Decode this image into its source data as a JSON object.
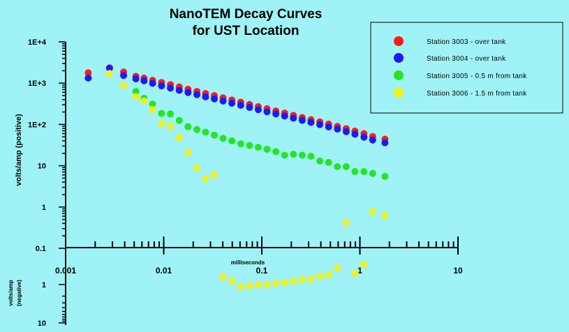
{
  "chart_data": {
    "type": "scatter",
    "title": [
      "NanoTEM Decay Curves",
      "for UST Location"
    ],
    "xlabel": "milliseconds",
    "ylabel_positive": "volts/amp (positive)",
    "ylabel_negative": [
      "volts/amp",
      "(negative)"
    ],
    "x_scale": "log",
    "xlim": [
      0.0008,
      15
    ],
    "y_scale": "log",
    "ylim_positive": [
      0.1,
      10000
    ],
    "ylim_negative": [
      0.1,
      10
    ],
    "x_tick_labels": [
      "0.001",
      "0.01",
      "0.1",
      "1",
      "10"
    ],
    "y_tick_labels_positive": [
      "1E+4",
      "1E+3",
      "1E+2",
      "10",
      "1",
      "0.1"
    ],
    "y_tick_labels_negative": [
      "1",
      "10"
    ],
    "legend_position": "top-right",
    "series": [
      {
        "name": "Station 3003 - over tank",
        "color": "#ff1a1a",
        "points": [
          [
            0.0017,
            1780
          ],
          [
            0.0028,
            2350
          ],
          [
            0.0039,
            1860
          ],
          [
            0.0052,
            1460
          ],
          [
            0.0063,
            1320
          ],
          [
            0.0077,
            1170
          ],
          [
            0.0095,
            1040
          ],
          [
            0.0117,
            920
          ],
          [
            0.0144,
            810
          ],
          [
            0.0177,
            710
          ],
          [
            0.0218,
            630
          ],
          [
            0.0267,
            560
          ],
          [
            0.0328,
            500
          ],
          [
            0.0403,
            440
          ],
          [
            0.0495,
            390
          ],
          [
            0.061,
            345
          ],
          [
            0.075,
            305
          ],
          [
            0.092,
            270
          ],
          [
            0.113,
            240
          ],
          [
            0.139,
            212
          ],
          [
            0.171,
            188
          ],
          [
            0.21,
            166
          ],
          [
            0.258,
            147
          ],
          [
            0.317,
            130
          ],
          [
            0.39,
            115
          ],
          [
            0.48,
            102
          ],
          [
            0.59,
            90
          ],
          [
            0.725,
            79
          ],
          [
            0.89,
            69
          ],
          [
            1.1,
            60
          ],
          [
            1.35,
            51
          ],
          [
            1.8,
            44
          ]
        ]
      },
      {
        "name": "Station 3004 - over tank",
        "color": "#1a1aff",
        "points": [
          [
            0.0017,
            1330
          ],
          [
            0.0028,
            2300
          ],
          [
            0.0039,
            1530
          ],
          [
            0.0052,
            1270
          ],
          [
            0.0063,
            1140
          ],
          [
            0.0077,
            990
          ],
          [
            0.0095,
            860
          ],
          [
            0.0117,
            760
          ],
          [
            0.0144,
            670
          ],
          [
            0.0177,
            590
          ],
          [
            0.0218,
            525
          ],
          [
            0.0267,
            465
          ],
          [
            0.0328,
            415
          ],
          [
            0.0403,
            368
          ],
          [
            0.0495,
            327
          ],
          [
            0.061,
            290
          ],
          [
            0.075,
            258
          ],
          [
            0.092,
            228
          ],
          [
            0.113,
            203
          ],
          [
            0.139,
            180
          ],
          [
            0.171,
            160
          ],
          [
            0.21,
            142
          ],
          [
            0.258,
            126
          ],
          [
            0.317,
            112
          ],
          [
            0.39,
            99
          ],
          [
            0.48,
            87
          ],
          [
            0.59,
            77
          ],
          [
            0.725,
            67
          ],
          [
            0.89,
            58
          ],
          [
            1.1,
            49
          ],
          [
            1.35,
            42
          ],
          [
            1.8,
            36
          ]
        ]
      },
      {
        "name": "Station 3005 - 0.5 m from tank",
        "color": "#22e622",
        "points": [
          [
            0.0052,
            630
          ],
          [
            0.0063,
            430
          ],
          [
            0.0077,
            310
          ],
          [
            0.0095,
            185
          ],
          [
            0.0117,
            180
          ],
          [
            0.0144,
            125
          ],
          [
            0.0177,
            88
          ],
          [
            0.0218,
            75
          ],
          [
            0.0267,
            65
          ],
          [
            0.0328,
            55
          ],
          [
            0.0403,
            46
          ],
          [
            0.0495,
            40
          ],
          [
            0.061,
            34
          ],
          [
            0.075,
            31
          ],
          [
            0.092,
            28
          ],
          [
            0.113,
            25
          ],
          [
            0.139,
            22
          ],
          [
            0.171,
            18
          ],
          [
            0.21,
            19
          ],
          [
            0.258,
            18
          ],
          [
            0.317,
            17
          ],
          [
            0.39,
            13
          ],
          [
            0.48,
            12
          ],
          [
            0.59,
            9.5
          ],
          [
            0.725,
            9.5
          ],
          [
            0.89,
            7.2
          ],
          [
            1.1,
            7.2
          ],
          [
            1.35,
            6.5
          ],
          [
            1.8,
            5.5
          ]
        ]
      },
      {
        "name": "Station 3006 - 1.5 m from tank",
        "color": "#f2f21a",
        "positive_points": [
          [
            0.0028,
            1710
          ],
          [
            0.0039,
            880
          ],
          [
            0.0052,
            470
          ],
          [
            0.0063,
            370
          ],
          [
            0.0077,
            230
          ],
          [
            0.0095,
            105
          ],
          [
            0.0117,
            90
          ],
          [
            0.0144,
            48
          ],
          [
            0.0177,
            21
          ],
          [
            0.0218,
            8.8
          ],
          [
            0.0267,
            4.8
          ],
          [
            0.0328,
            6.0
          ],
          [
            0.725,
            0.42
          ],
          [
            1.35,
            0.78
          ],
          [
            1.8,
            0.62
          ]
        ],
        "negative_points": [
          [
            0.0403,
            0.62
          ],
          [
            0.0495,
            0.81
          ],
          [
            0.061,
            1.14
          ],
          [
            0.075,
            1.08
          ],
          [
            0.092,
            1.02
          ],
          [
            0.113,
            1.0
          ],
          [
            0.139,
            0.93
          ],
          [
            0.171,
            0.88
          ],
          [
            0.21,
            0.82
          ],
          [
            0.258,
            0.74
          ],
          [
            0.317,
            0.72
          ],
          [
            0.39,
            0.61
          ],
          [
            0.48,
            0.56
          ],
          [
            0.59,
            0.37
          ],
          [
            0.89,
            0.51
          ],
          [
            1.1,
            0.3
          ]
        ]
      }
    ]
  }
}
